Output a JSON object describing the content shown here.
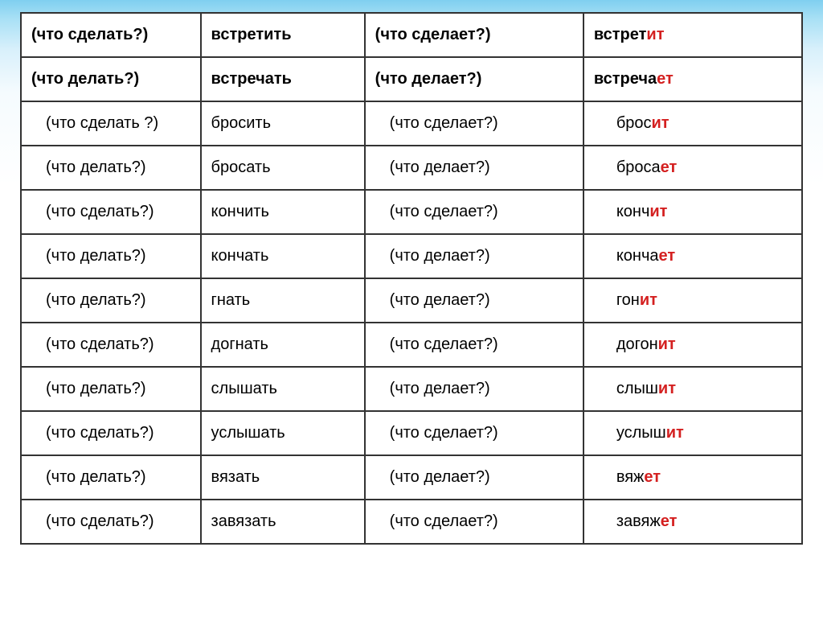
{
  "rows": [
    {
      "q1": "(что сделать?)",
      "a1": "встретить",
      "q2": "(что сделает?)",
      "stem": "встрет",
      "suffix": "ит",
      "bold_q": true,
      "bold_a1": true,
      "bold_stem": true
    },
    {
      "q1": "(что делать?)",
      "a1": "встречать",
      "q2": "(что делает?)",
      "stem": "встреча",
      "suffix": "ет",
      "bold_q": true,
      "bold_a1": true,
      "bold_stem": true
    },
    {
      "q1": "(что сделать ?)",
      "a1": "бросить",
      "q2": "(что сделает?)",
      "stem": "брос",
      "suffix": "ит",
      "bold_q": false,
      "bold_a1": false,
      "bold_stem": false
    },
    {
      "q1": "(что делать?)",
      "a1": "бросать",
      "q2": "(что делает?)",
      "stem": "броса",
      "suffix": "ет",
      "bold_q": false,
      "bold_a1": false,
      "bold_stem": false
    },
    {
      "q1": "(что сделать?)",
      "a1": "кончить",
      "q2": "(что сделает?)",
      "stem": "конч",
      "suffix": "ит",
      "bold_q": false,
      "bold_a1": false,
      "bold_stem": false
    },
    {
      "q1": "(что делать?)",
      "a1": "кончать",
      "q2": "(что делает?)",
      "stem": "конча",
      "suffix": "ет",
      "bold_q": false,
      "bold_a1": false,
      "bold_stem": false
    },
    {
      "q1": "(что делать?)",
      "a1": "гнать",
      "q2": "(что делает?)",
      "stem": "гон",
      "suffix": "ит",
      "bold_q": false,
      "bold_a1": false,
      "bold_stem": false
    },
    {
      "q1": "(что сделать?)",
      "a1": "догнать",
      "q2": "(что сделает?)",
      "stem": "догон",
      "suffix": "ит",
      "bold_q": false,
      "bold_a1": false,
      "bold_stem": false
    },
    {
      "q1": "(что делать?)",
      "a1": "слышать",
      "q2": "(что делает?)",
      "stem": "слыш",
      "suffix": "ит",
      "bold_q": false,
      "bold_a1": false,
      "bold_stem": false
    },
    {
      "q1": "(что сделать?)",
      "a1": "услышать",
      "q2": "(что сделает?)",
      "stem": "услыш",
      "suffix": "ит",
      "bold_q": false,
      "bold_a1": false,
      "bold_stem": false
    },
    {
      "q1": "(что делать?)",
      "a1": "вязать",
      "q2": "(что делает?)",
      "stem": "вяж",
      "suffix": "ет",
      "bold_q": false,
      "bold_a1": false,
      "bold_stem": false
    },
    {
      "q1": "(что сделать?)",
      "a1": "завязать",
      "q2": "(что сделает?)",
      "stem": "завяж",
      "suffix": "ет",
      "bold_q": false,
      "bold_a1": false,
      "bold_stem": false
    }
  ],
  "colors": {
    "suffix": "#d42020",
    "border": "#333333",
    "text": "#000000",
    "bg": "#ffffff"
  }
}
